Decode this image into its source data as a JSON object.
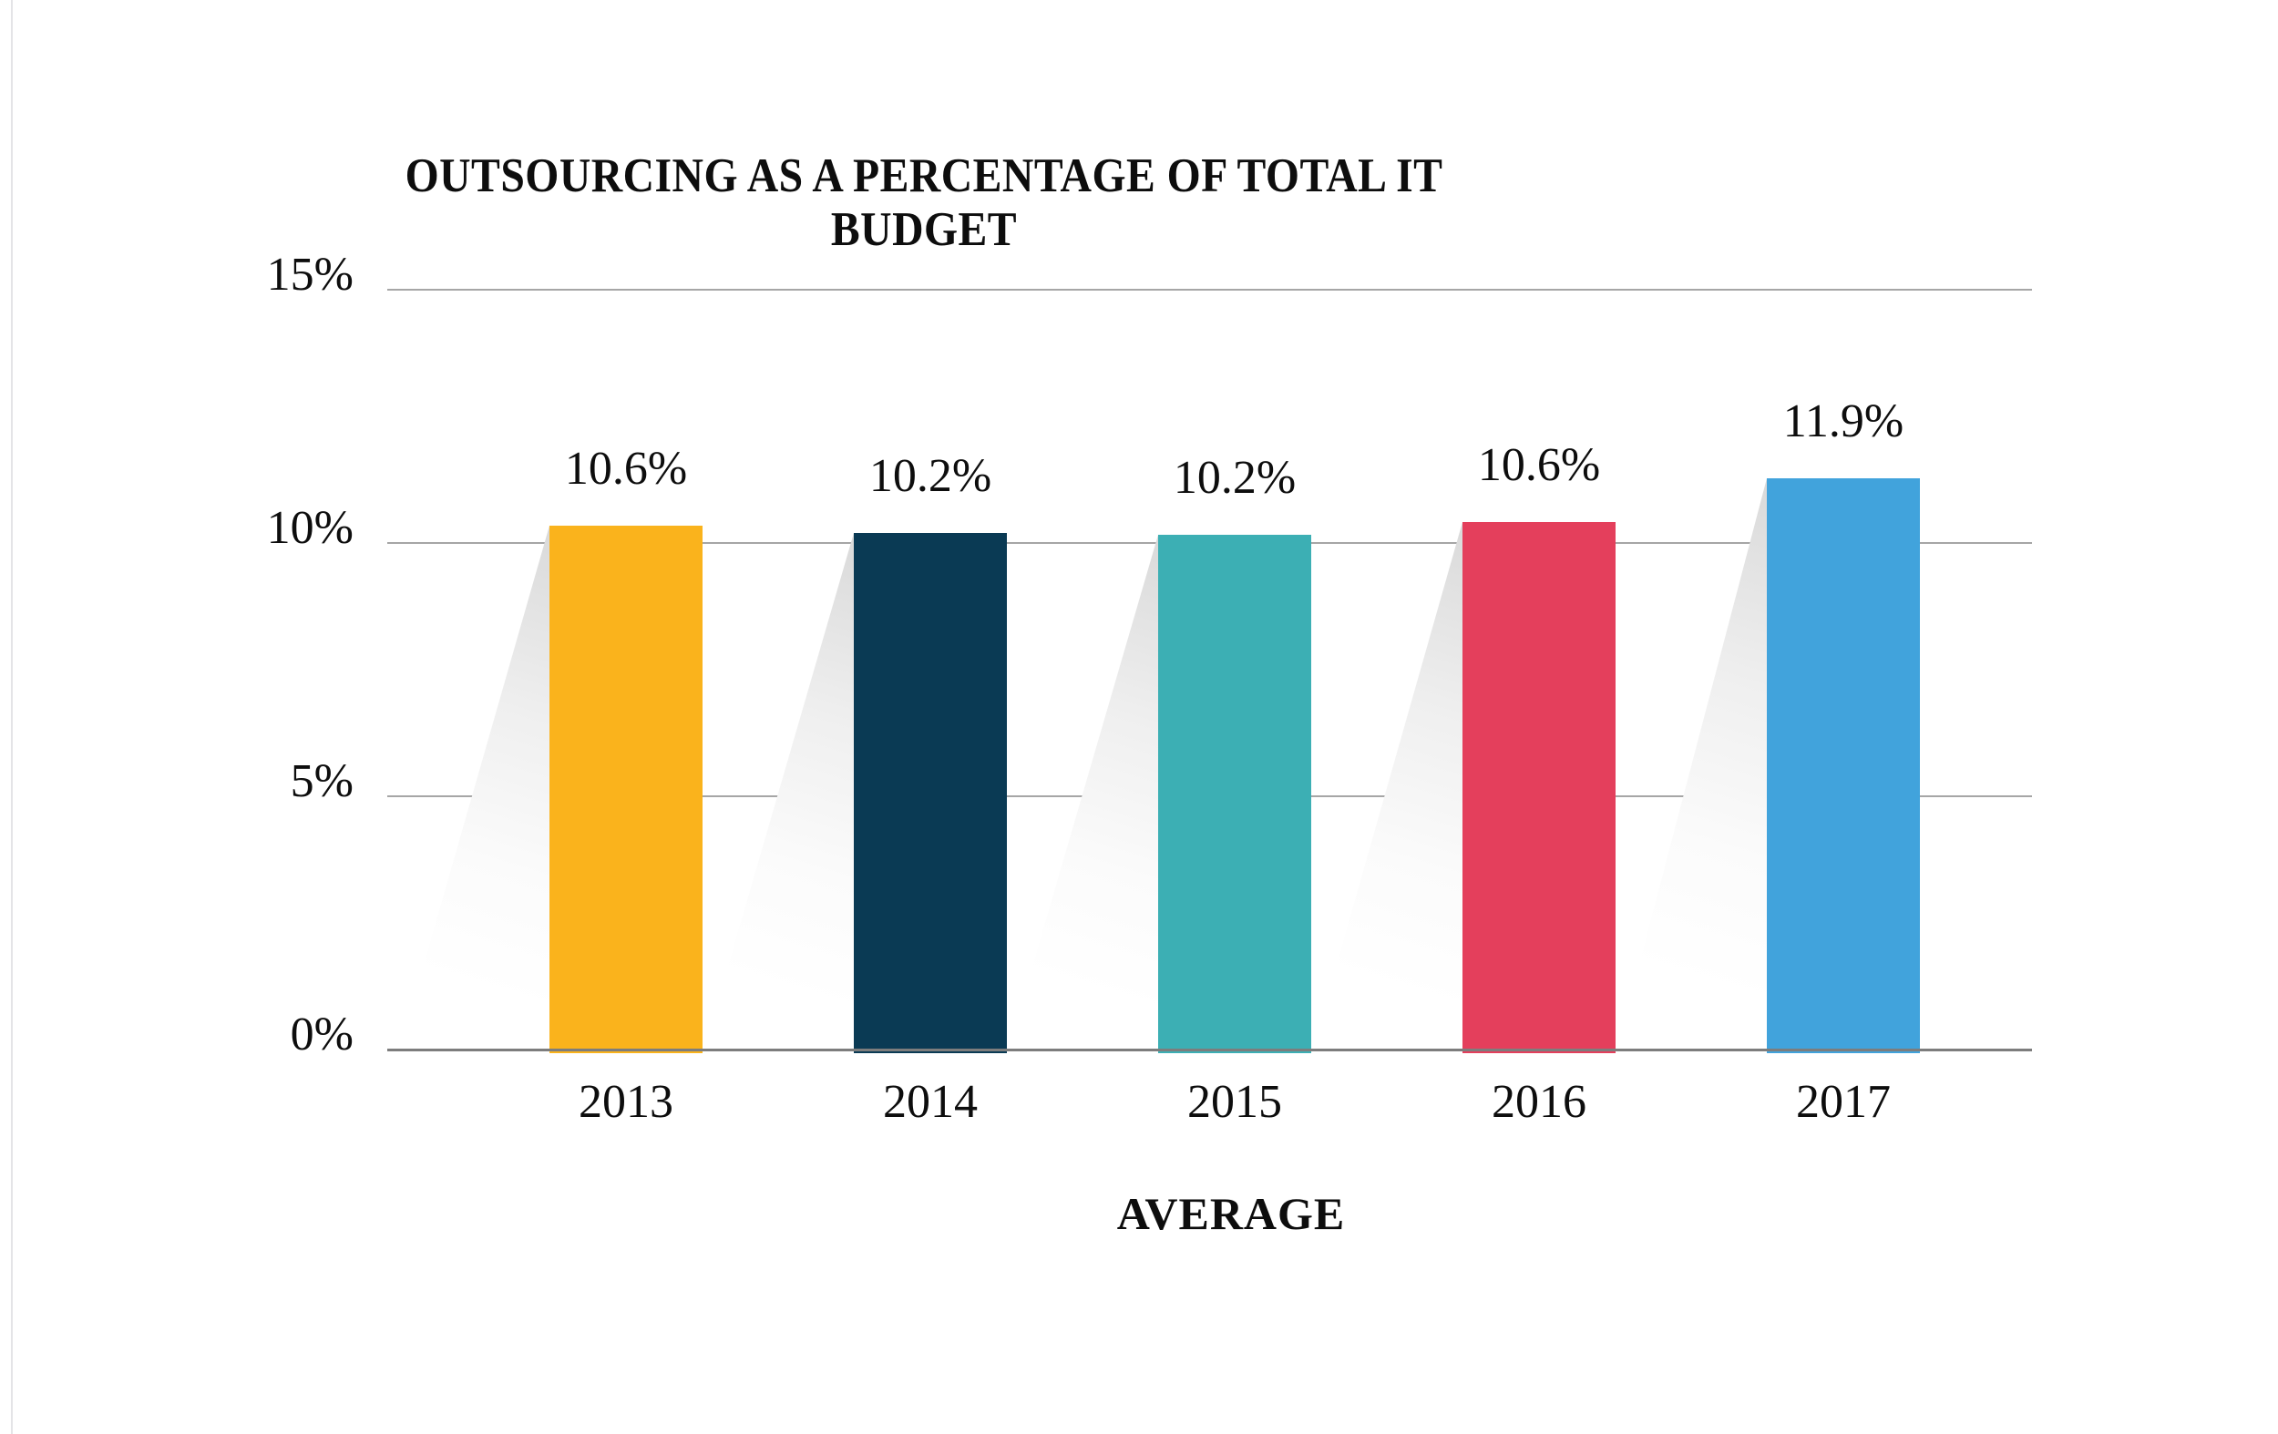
{
  "page": {
    "background_color": "#ffffff"
  },
  "chart_data": {
    "type": "bar",
    "title": "OUTSOURCING AS A PERCENTAGE OF TOTAL IT BUDGET",
    "title_lines": [
      "OUTSOURCING AS A PERCENTAGE OF TOTAL IT",
      "BUDGET"
    ],
    "xlabel": "AVERAGE",
    "ylabel": "",
    "categories": [
      "2013",
      "2014",
      "2015",
      "2016",
      "2017"
    ],
    "values": [
      10.6,
      10.2,
      10.2,
      10.6,
      11.9
    ],
    "value_labels": [
      "10.6%",
      "10.2%",
      "10.2%",
      "10.6%",
      "11.9%"
    ],
    "bar_colors": [
      "#FAB31C",
      "#0A3A54",
      "#3CAFB4",
      "#E43F5C",
      "#41A3DC"
    ],
    "y_ticks": [
      "15%",
      "10%",
      "5%",
      "0%"
    ],
    "ylim": [
      0,
      15
    ],
    "grid": true,
    "legend": false,
    "gridline_color": "#A6A6A6",
    "axis_line_color": "#7D7D7D",
    "text_color": "#0D0D0D"
  }
}
